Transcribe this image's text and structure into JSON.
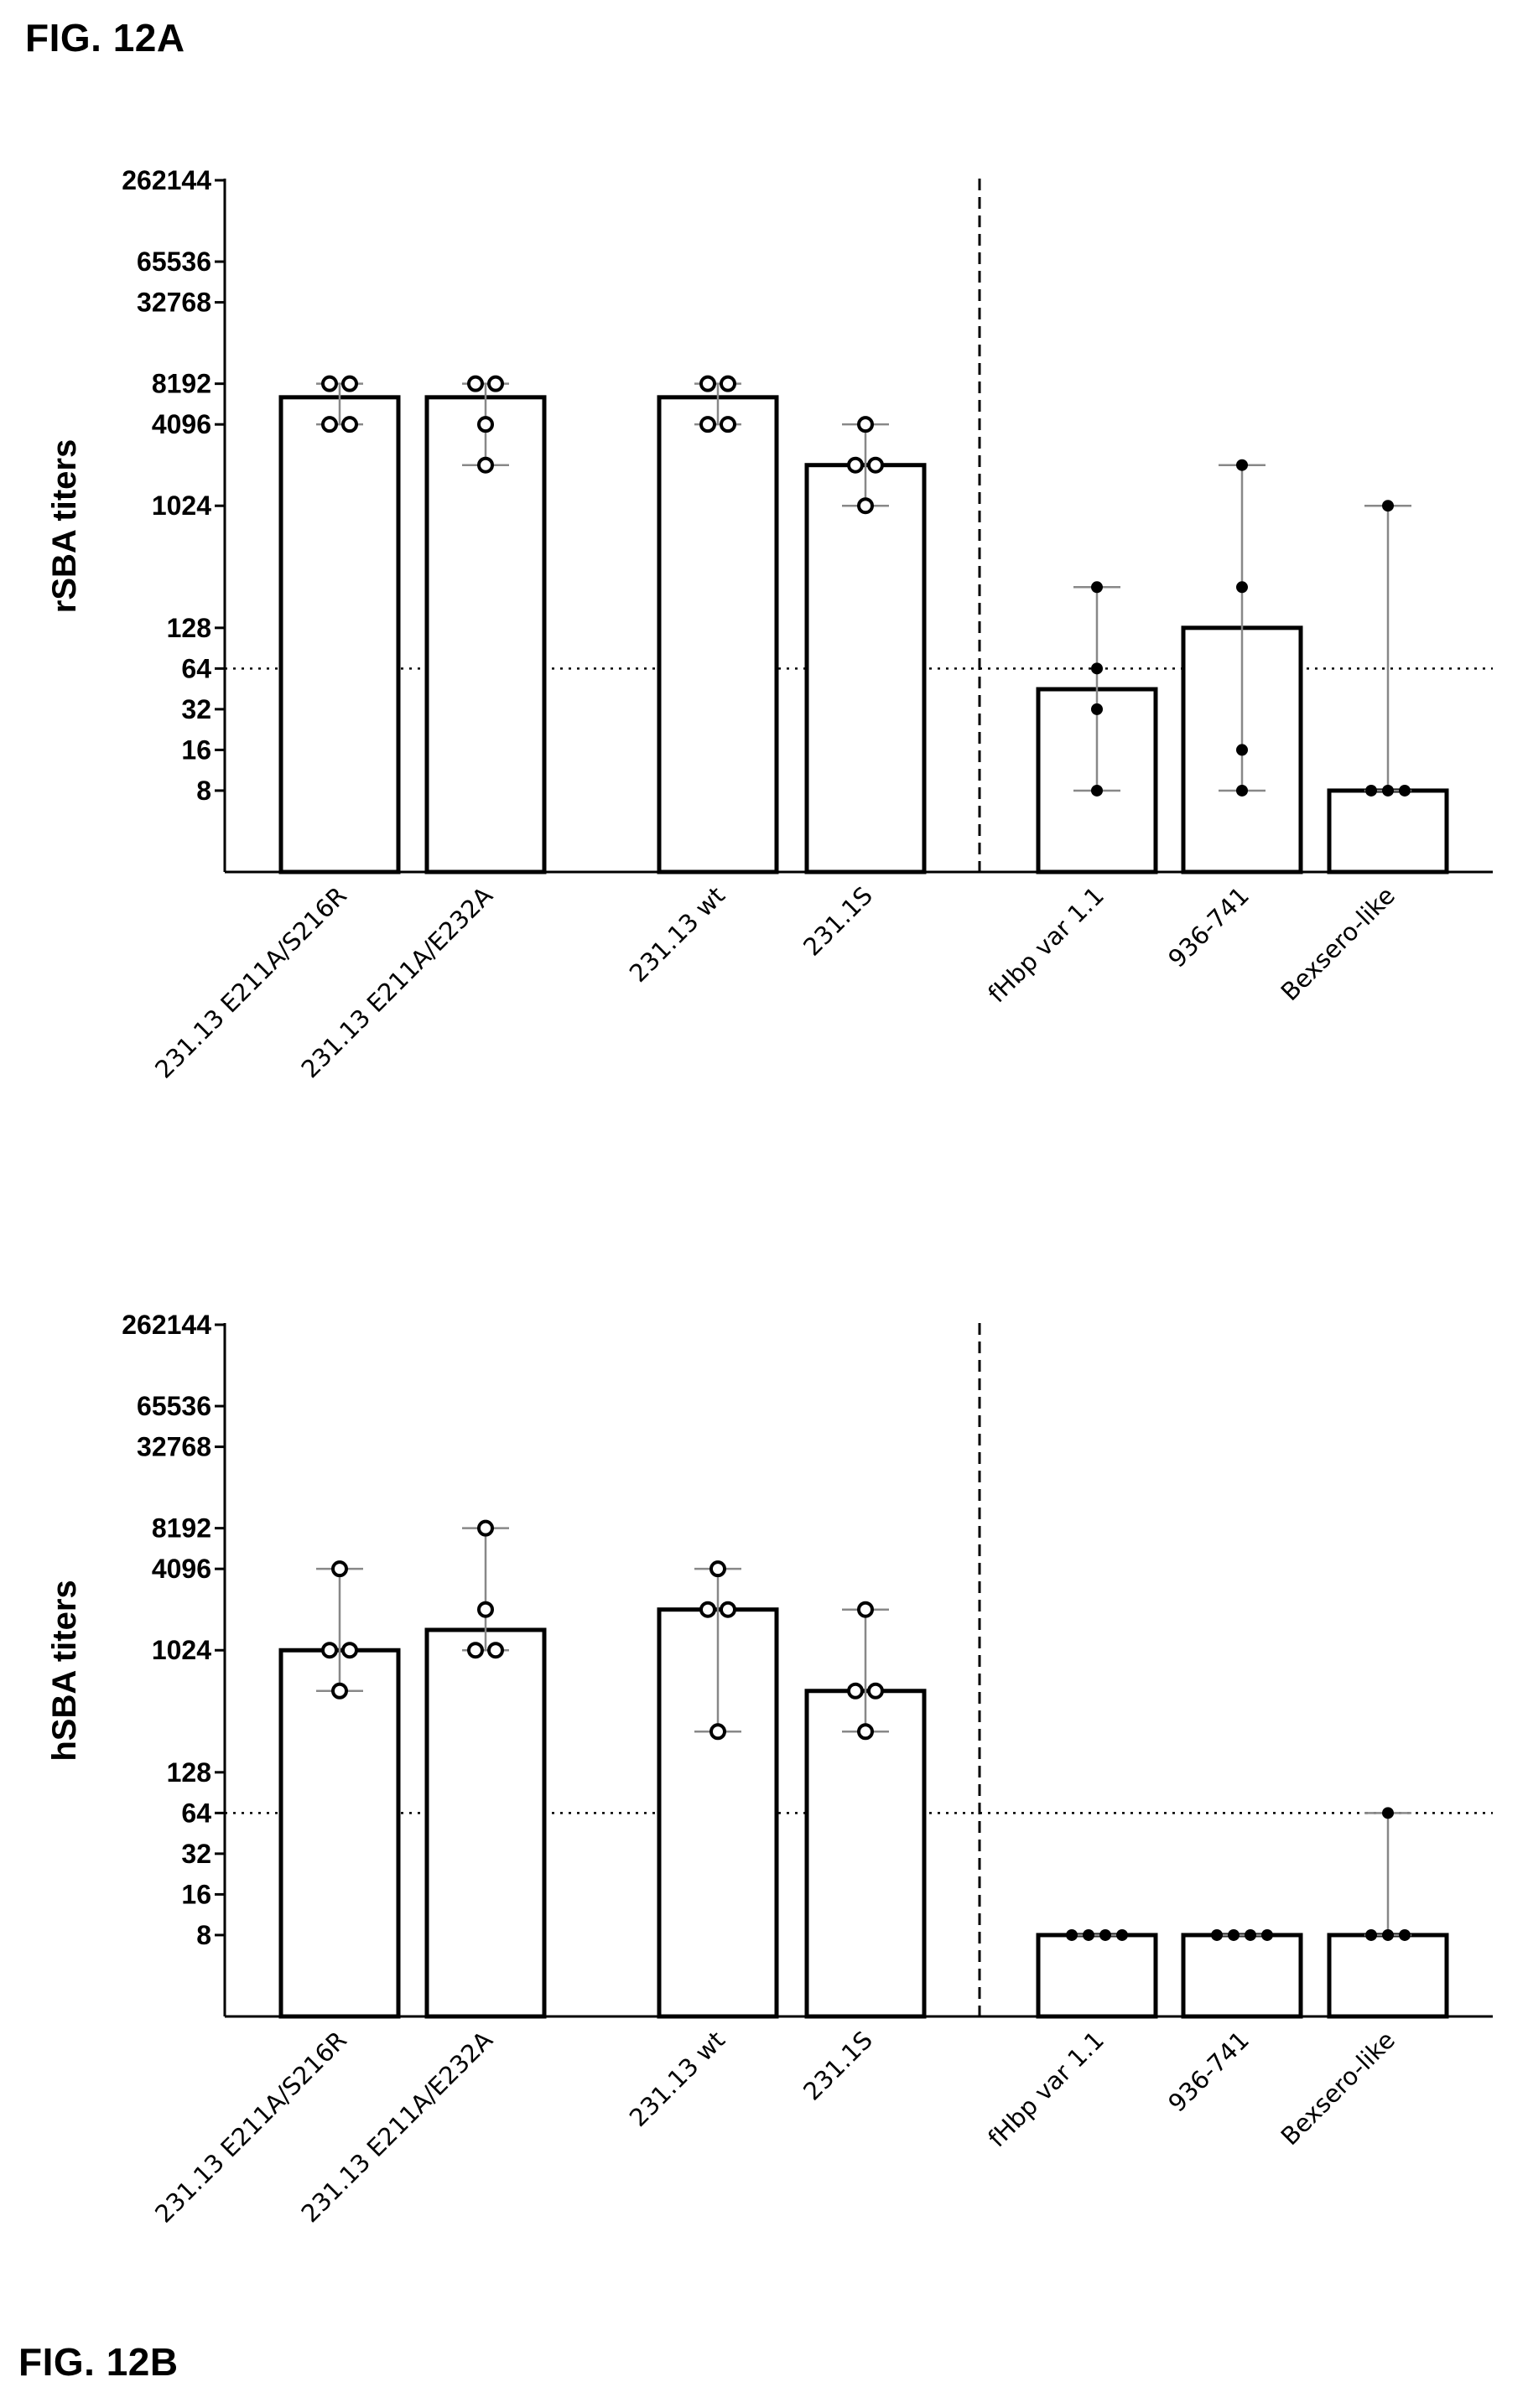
{
  "figure_labels": {
    "a": "FIG. 12A",
    "b": "FIG. 12B"
  },
  "chart_data": [
    {
      "type": "bar",
      "ylabel": "rSBA titers",
      "yscale": "log2",
      "ylim": [
        2,
        262144
      ],
      "yticks": [
        8,
        16,
        32,
        64,
        128,
        1024,
        4096,
        8192,
        32768,
        65536,
        262144
      ],
      "categories": [
        "231.13 E211A/S216R",
        "231.13 E211A/E232A",
        "231.13 wt",
        "231.1S",
        "fHbp var 1.1",
        "936-741",
        "Bexsero-like"
      ],
      "values": [
        6502,
        6502,
        6502,
        2048,
        45,
        128,
        8
      ],
      "error_ranges": [
        [
          4096,
          8192
        ],
        [
          2048,
          8192
        ],
        [
          4096,
          8192
        ],
        [
          1024,
          4096
        ],
        [
          8,
          256
        ],
        [
          8,
          2048
        ],
        [
          8,
          1024
        ]
      ],
      "points": [
        [
          4096,
          4096,
          8192,
          8192
        ],
        [
          2048,
          4096,
          8192,
          8192
        ],
        [
          4096,
          4096,
          8192,
          8192
        ],
        [
          1024,
          2048,
          2048,
          4096
        ],
        [
          8,
          32,
          64,
          256
        ],
        [
          8,
          16,
          256,
          2048
        ],
        [
          8,
          8,
          8,
          1024
        ]
      ],
      "point_style": [
        "open",
        "open",
        "open",
        "open",
        "filled",
        "filled",
        "filled"
      ],
      "threshold": 64,
      "group_divider_after": "231.1S"
    },
    {
      "type": "bar",
      "ylabel": "hSBA titers",
      "yscale": "log2",
      "ylim": [
        2,
        262144
      ],
      "yticks": [
        8,
        16,
        32,
        64,
        128,
        1024,
        4096,
        8192,
        32768,
        65536,
        262144
      ],
      "categories": [
        "231.13 E211A/S216R",
        "231.13 E211A/E232A",
        "231.13 wt",
        "231.1S",
        "fHbp var 1.1",
        "936-741",
        "Bexsero-like"
      ],
      "values": [
        1024,
        1448,
        2048,
        512,
        8,
        8,
        8
      ],
      "error_ranges": [
        [
          512,
          4096
        ],
        [
          1024,
          8192
        ],
        [
          256,
          4096
        ],
        [
          256,
          2048
        ],
        [
          8,
          8
        ],
        [
          8,
          8
        ],
        [
          8,
          64
        ]
      ],
      "points": [
        [
          512,
          1024,
          1024,
          4096
        ],
        [
          1024,
          1024,
          2048,
          8192
        ],
        [
          256,
          2048,
          2048,
          4096
        ],
        [
          256,
          512,
          512,
          2048
        ],
        [
          8,
          8,
          8,
          8
        ],
        [
          8,
          8,
          8,
          8
        ],
        [
          8,
          8,
          8,
          64
        ]
      ],
      "point_style": [
        "open",
        "open",
        "open",
        "open",
        "filled",
        "filled",
        "filled"
      ],
      "threshold": 64,
      "group_divider_after": "231.1S"
    }
  ]
}
